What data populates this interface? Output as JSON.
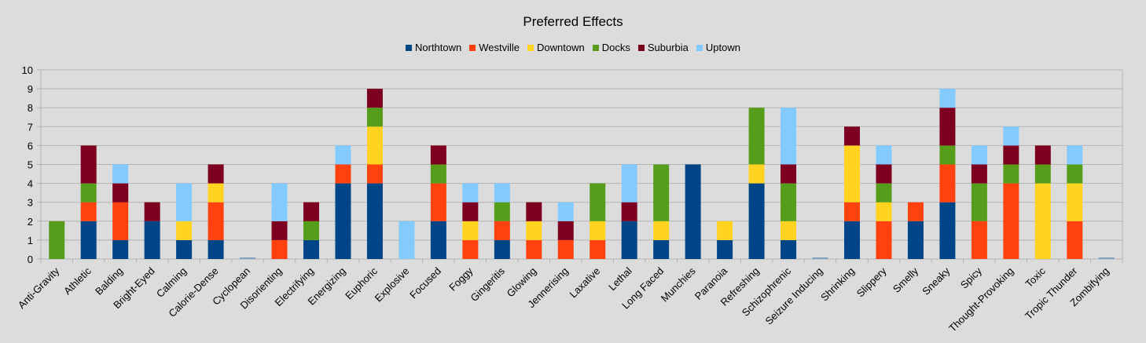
{
  "chart_data": {
    "type": "bar",
    "stacked": true,
    "title": "Preferred Effects",
    "xlabel": "",
    "ylabel": "",
    "ylim": [
      0,
      10
    ],
    "yticks": [
      0,
      1,
      2,
      3,
      4,
      5,
      6,
      7,
      8,
      9,
      10
    ],
    "grid": true,
    "legend_position": "top",
    "categories": [
      "Anti-Gravity",
      "Athletic",
      "Balding",
      "Bright-Eyed",
      "Calming",
      "Calorie-Dense",
      "Cyclopean",
      "Disorienting",
      "Electrifying",
      "Energizing",
      "Euphoric",
      "Explosive",
      "Focused",
      "Foggy",
      "Gingeritis",
      "Glowing",
      "Jennerising",
      "Laxative",
      "Lethal",
      "Long Faced",
      "Munchies",
      "Paranoia",
      "Refreshing",
      "Schizophrenic",
      "Seizure Inducing",
      "Shrinking",
      "Slippery",
      "Smelly",
      "Sneaky",
      "Spicy",
      "Thought-Provoking",
      "Toxic",
      "Tropic Thunder",
      "Zombifying"
    ],
    "series": [
      {
        "name": "Northtown",
        "color": "#004586",
        "values": [
          0,
          2,
          1,
          2,
          1,
          1,
          0,
          0,
          1,
          4,
          4,
          0,
          2,
          0,
          1,
          0,
          0,
          0,
          2,
          1,
          5,
          1,
          4,
          1,
          0,
          2,
          0,
          2,
          3,
          0,
          0,
          0,
          0,
          0
        ]
      },
      {
        "name": "Westville",
        "color": "#ff420e",
        "values": [
          0,
          1,
          2,
          0,
          0,
          2,
          0,
          1,
          0,
          1,
          1,
          0,
          2,
          1,
          1,
          1,
          1,
          1,
          0,
          0,
          0,
          0,
          0,
          0,
          0,
          1,
          2,
          1,
          2,
          2,
          4,
          0,
          2,
          0
        ]
      },
      {
        "name": "Downtown",
        "color": "#ffd320",
        "values": [
          0,
          0,
          0,
          0,
          1,
          1,
          0,
          0,
          0,
          0,
          2,
          0,
          0,
          1,
          0,
          1,
          0,
          1,
          0,
          1,
          0,
          1,
          1,
          1,
          0,
          3,
          1,
          0,
          0,
          0,
          0,
          4,
          2,
          0
        ]
      },
      {
        "name": "Docks",
        "color": "#579d1c",
        "values": [
          2,
          1,
          0,
          0,
          0,
          0,
          0,
          0,
          1,
          0,
          1,
          0,
          1,
          0,
          1,
          0,
          0,
          2,
          0,
          3,
          0,
          0,
          3,
          2,
          0,
          0,
          1,
          0,
          1,
          2,
          1,
          1,
          1,
          0
        ]
      },
      {
        "name": "Suburbia",
        "color": "#7e0021",
        "values": [
          0,
          2,
          1,
          1,
          0,
          1,
          0,
          1,
          1,
          0,
          1,
          0,
          1,
          1,
          0,
          1,
          1,
          0,
          1,
          0,
          0,
          0,
          0,
          1,
          0,
          1,
          1,
          0,
          2,
          1,
          1,
          1,
          0,
          0
        ]
      },
      {
        "name": "Uptown",
        "color": "#83caff",
        "values": [
          0,
          0,
          1,
          0,
          2,
          0,
          0,
          2,
          0,
          1,
          0,
          2,
          0,
          1,
          1,
          0,
          1,
          0,
          2,
          0,
          0,
          0,
          0,
          3,
          0,
          0,
          1,
          0,
          1,
          1,
          1,
          0,
          1,
          0
        ]
      }
    ]
  }
}
